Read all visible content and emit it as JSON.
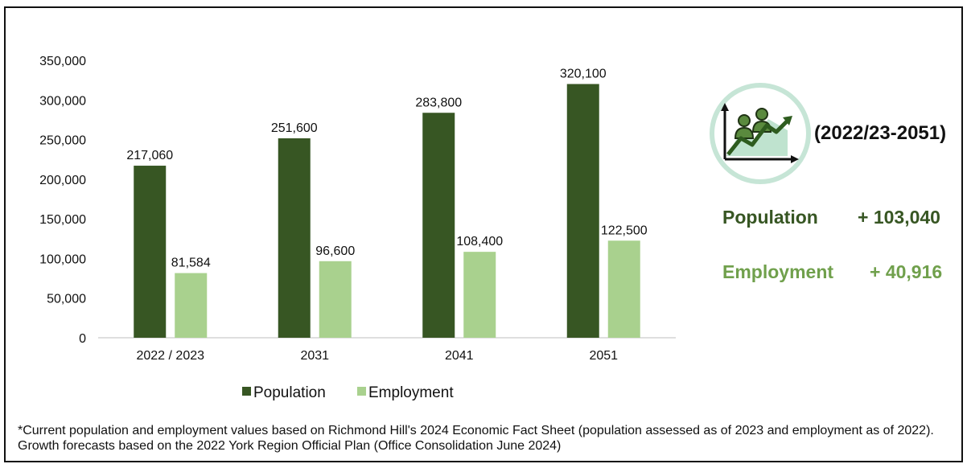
{
  "chart_data": {
    "type": "bar",
    "categories": [
      "2022 / 2023",
      "2031",
      "2041",
      "2051"
    ],
    "series": [
      {
        "name": "Population",
        "color": "#375623",
        "values": [
          217060,
          251600,
          283800,
          320100
        ],
        "labels": [
          "217,060",
          "251,600",
          "283,800",
          "320,100"
        ]
      },
      {
        "name": "Employment",
        "color": "#a9d18e",
        "values": [
          81584,
          96600,
          108400,
          122500
        ],
        "labels": [
          "81,584",
          "96,600",
          "108,400",
          "122,500"
        ]
      }
    ],
    "ylim": [
      0,
      350000
    ],
    "yticks": [
      0,
      50000,
      100000,
      150000,
      200000,
      250000,
      300000,
      350000
    ],
    "ytick_labels": [
      "0",
      "50,000",
      "100,000",
      "150,000",
      "200,000",
      "250,000",
      "300,000",
      "350,000"
    ],
    "grid": false,
    "legend": "bottom",
    "xlabel": "",
    "ylabel": ""
  },
  "summary": {
    "period": "(2022/23-2051)",
    "population_label": "Population",
    "population_change": "+ 103,040",
    "employment_label": "Employment",
    "employment_change": "+ 40,916",
    "icon": "growth-chart-people-icon"
  },
  "footnote": "*Current population and employment values based on Richmond Hill's 2024 Economic Fact Sheet (population assessed as of 2023 and employment as of 2022). Growth forecasts based on the 2022 York Region Official Plan (Office Consolidation June 2024)"
}
